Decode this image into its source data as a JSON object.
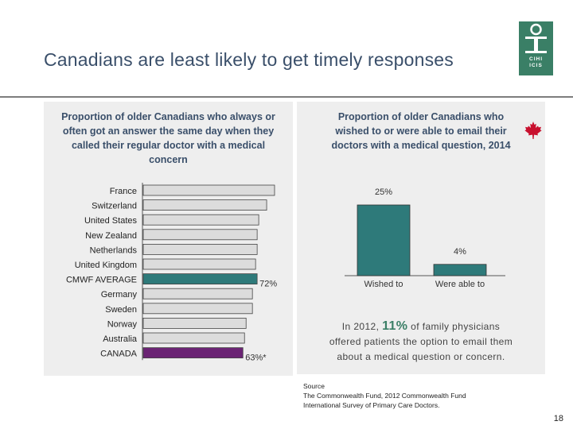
{
  "title": "Canadians are least likely to get timely responses",
  "logo": {
    "line1": "CIHI",
    "line2": "ICIS"
  },
  "colors": {
    "teal": "#2e7a7a",
    "purple": "#6b2474",
    "gray_bar": "#dcdcdc",
    "logo_green": "#3a7f66"
  },
  "chart_data": [
    {
      "type": "bar",
      "orientation": "horizontal",
      "title": "Proportion of older Canadians who always or often got an answer the same day when they called their regular doctor with a medical concern",
      "categories": [
        "France",
        "Switzerland",
        "United States",
        "New Zealand",
        "Netherlands",
        "United Kingdom",
        "CMWF AVERAGE",
        "Germany",
        "Sweden",
        "Norway",
        "Australia",
        "CANADA"
      ],
      "values": [
        83,
        78,
        73,
        72,
        72,
        71,
        72,
        69,
        69,
        65,
        64,
        63
      ],
      "value_labels": [
        "",
        "",
        "",
        "",
        "",
        "",
        "72%",
        "",
        "",
        "",
        "",
        "63%*"
      ],
      "highlight": {
        "CMWF AVERAGE": "teal",
        "CANADA": "purple"
      },
      "xlim": [
        0,
        83
      ]
    },
    {
      "type": "bar",
      "orientation": "vertical",
      "title": "Proportion of older Canadians who wished to or were able to email their doctors with a medical question, 2014",
      "categories": [
        "Wished to",
        "Were able to"
      ],
      "values": [
        25,
        4
      ],
      "value_labels": [
        "25%",
        "4%"
      ],
      "ylim": [
        0,
        25
      ]
    }
  ],
  "note": {
    "prefix": "In 2012, ",
    "highlight": "11%",
    "line1_suffix": " of family physicians",
    "line2": "offered patients the option to email them",
    "line3": "about a medical question or concern."
  },
  "source": {
    "label": "Source",
    "line1": "The Commonwealth Fund, 2012 Commonwealth Fund",
    "line2": "International Survey of Primary Care Doctors."
  },
  "page_number": "18"
}
